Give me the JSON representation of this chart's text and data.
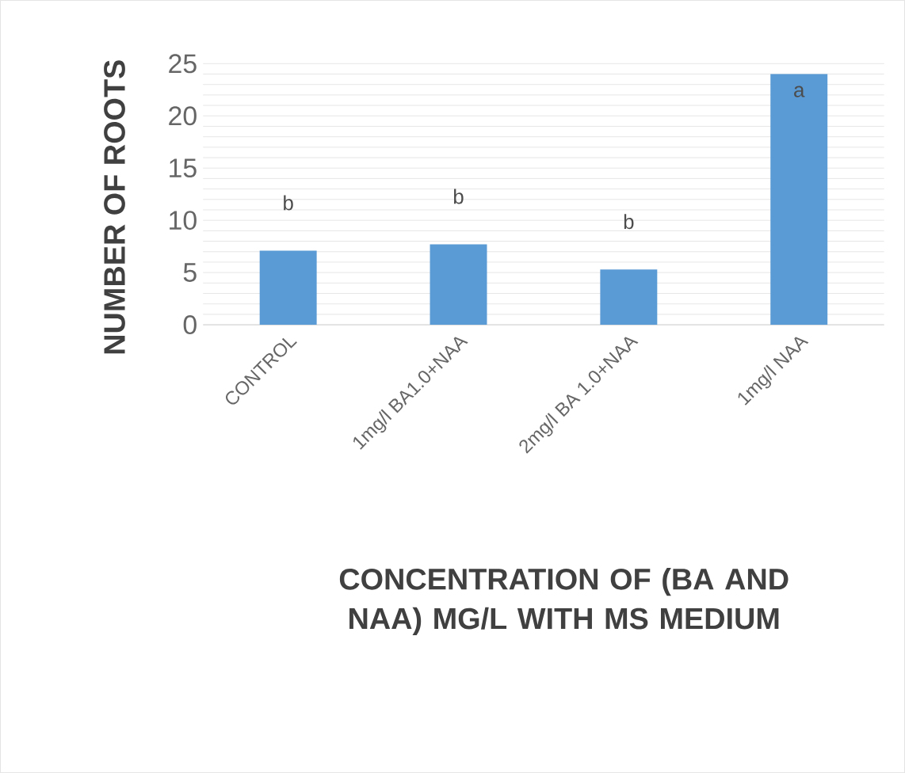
{
  "chart_data": {
    "type": "bar",
    "xlabel": "CONCENTRATION OF (BA AND NAA) MG/L WITH MS MEDIUM",
    "ylabel": "NUMBER OF ROOTS",
    "categories": [
      "CONTROL",
      "1mg/l BA1.0+NAA",
      "2mg/l BA 1.0+NAA",
      "1mg/l NAA"
    ],
    "values": [
      7.1,
      7.7,
      5.3,
      24.0
    ],
    "color": "#5b9bd5",
    "ylim": [
      0,
      25
    ],
    "yticks": [
      0,
      {
        "value": 1,
        "label": null
      },
      {
        "value": 2,
        "label": null
      },
      {
        "value": 3,
        "label": null
      },
      {
        "value": 4,
        "label": null
      },
      5,
      {
        "value": 6,
        "label": null
      },
      {
        "value": 7,
        "label": null
      },
      {
        "value": 8,
        "label": null
      },
      {
        "value": 9,
        "label": null
      },
      10,
      {
        "value": 11,
        "label": null
      },
      {
        "value": 12,
        "label": null
      },
      {
        "value": 13,
        "label": null
      },
      {
        "value": 14,
        "label": null
      },
      15,
      {
        "value": 16,
        "label": null
      },
      {
        "value": 17,
        "label": null
      },
      {
        "value": 18,
        "label": null
      },
      {
        "value": 19,
        "label": null
      },
      20,
      {
        "value": 21,
        "label": null
      },
      {
        "value": 22,
        "label": null
      },
      {
        "value": 23,
        "label": null
      },
      {
        "value": 24,
        "label": null
      },
      25
    ],
    "grid": "y",
    "annotations": [
      "b",
      "b",
      "b",
      "a"
    ]
  }
}
